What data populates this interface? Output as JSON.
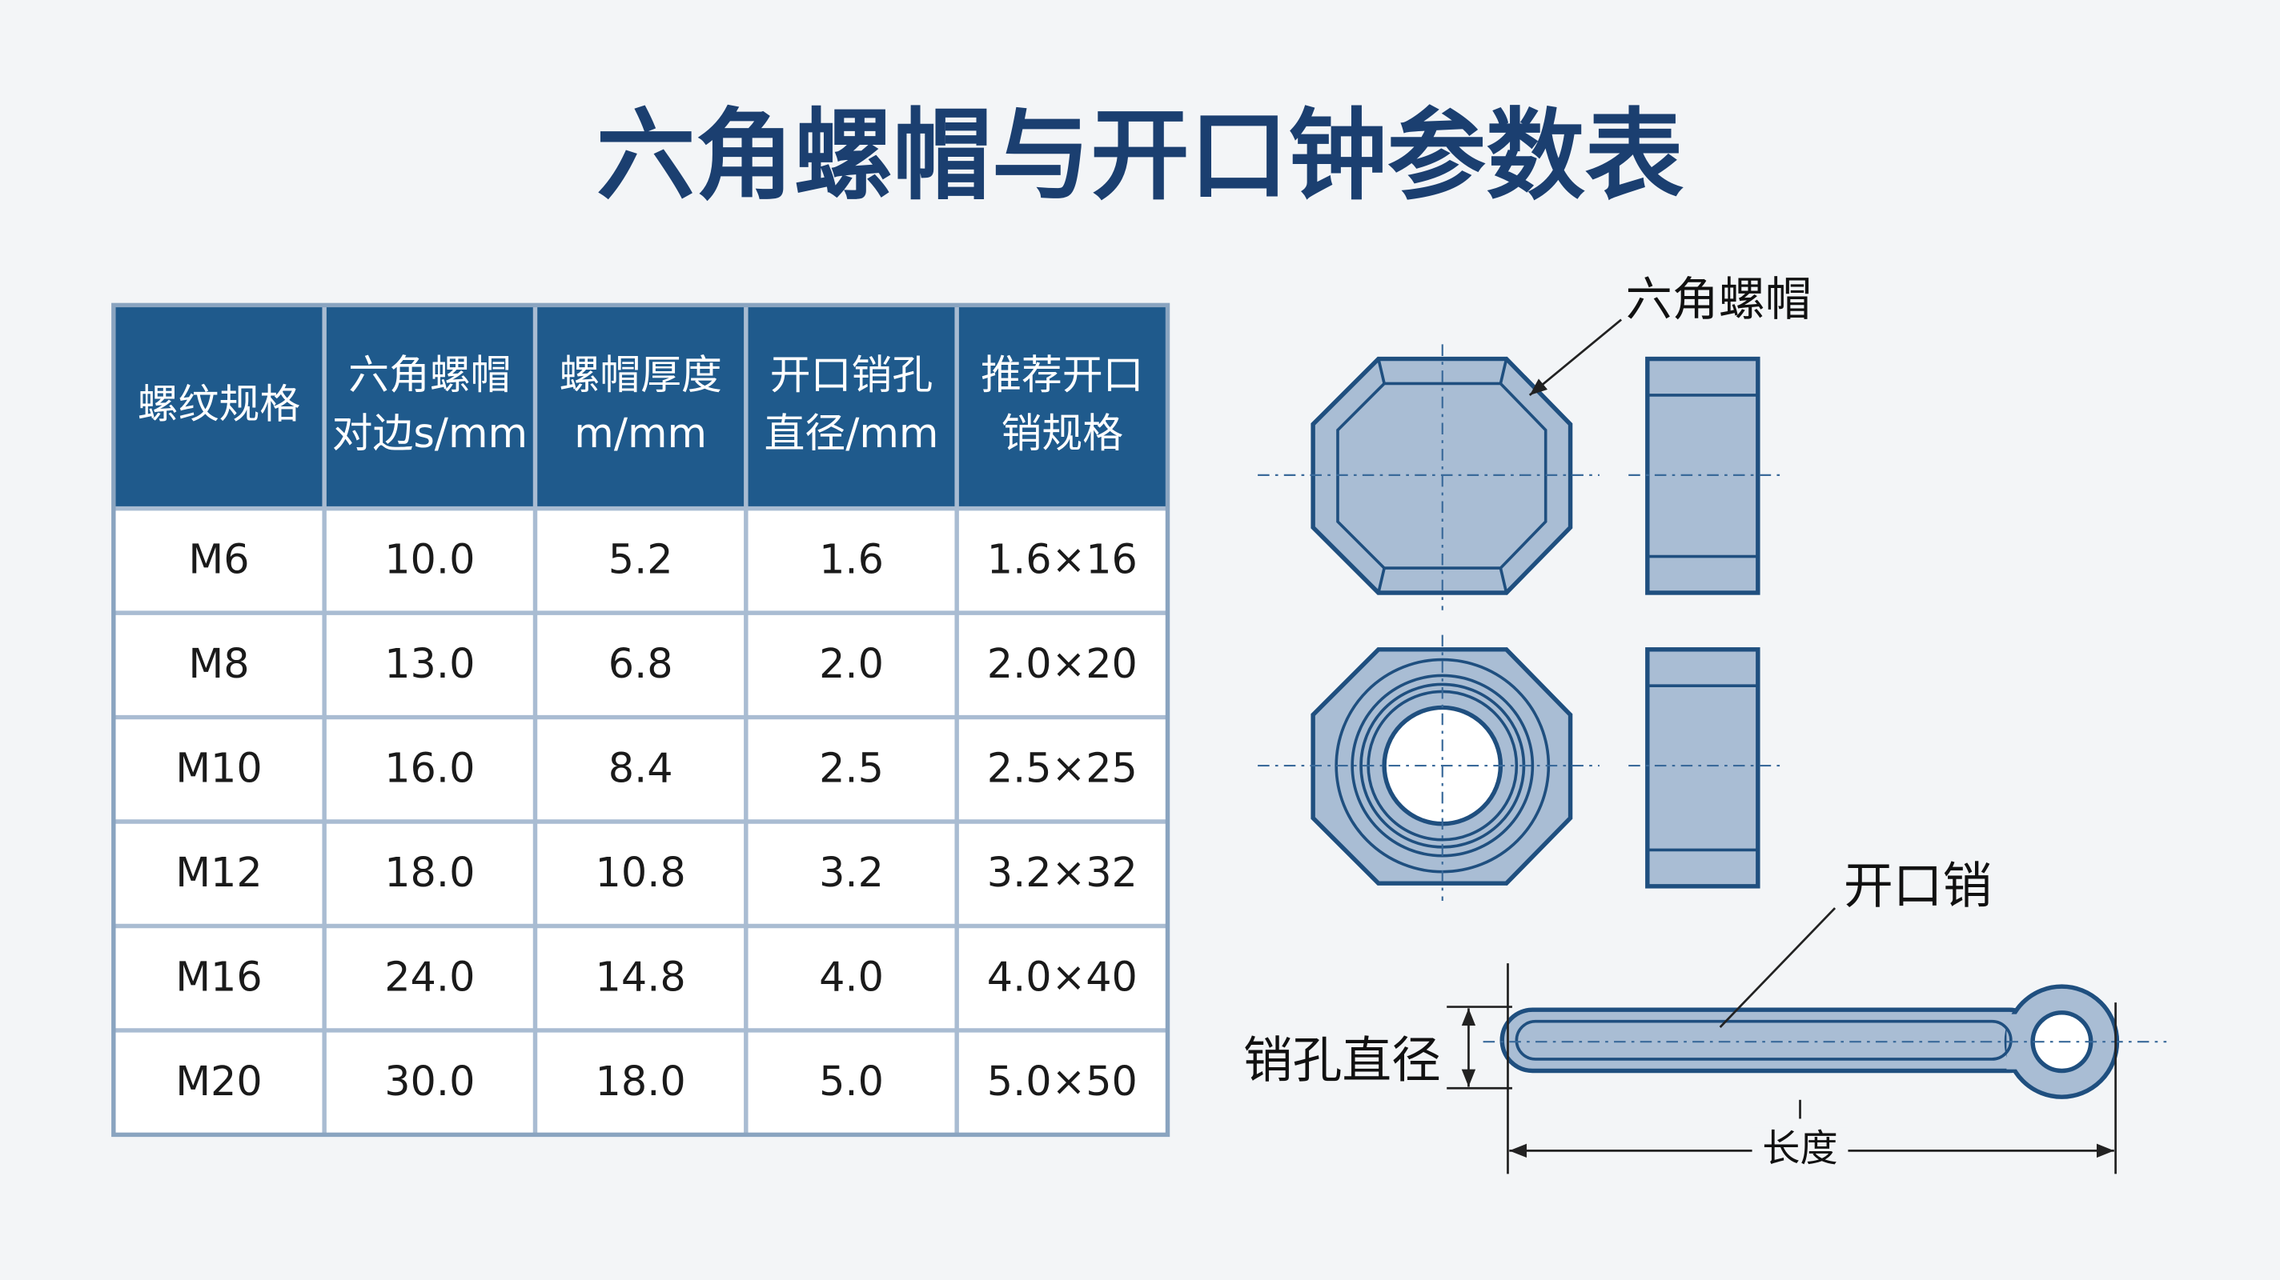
{
  "title": "六角螺帽与开口钟参数表",
  "table": {
    "header": [
      [
        "螺纹规格"
      ],
      [
        "六角螺帽",
        "对边s/mm"
      ],
      [
        "螺帽厚度",
        "m/mm"
      ],
      [
        "开口销孔",
        "直径/mm"
      ],
      [
        "推荐开口",
        "销规格"
      ]
    ],
    "rows": [
      [
        "M6",
        "10.0",
        "5.2",
        "1.6",
        "1.6×16"
      ],
      [
        "M8",
        "13.0",
        "6.8",
        "2.0",
        "2.0×20"
      ],
      [
        "M10",
        "16.0",
        "8.4",
        "2.5",
        "2.5×25"
      ],
      [
        "M12",
        "18.0",
        "10.8",
        "3.2",
        "3.2×32"
      ],
      [
        "M16",
        "24.0",
        "14.8",
        "4.0",
        "4.0×40"
      ],
      [
        "M20",
        "30.0",
        "18.0",
        "5.0",
        "5.0×50"
      ]
    ]
  },
  "diagram": {
    "nut_label": "六角螺帽",
    "pin_label": "开口销",
    "hole_label": "销孔直径",
    "length_label": "长度"
  }
}
